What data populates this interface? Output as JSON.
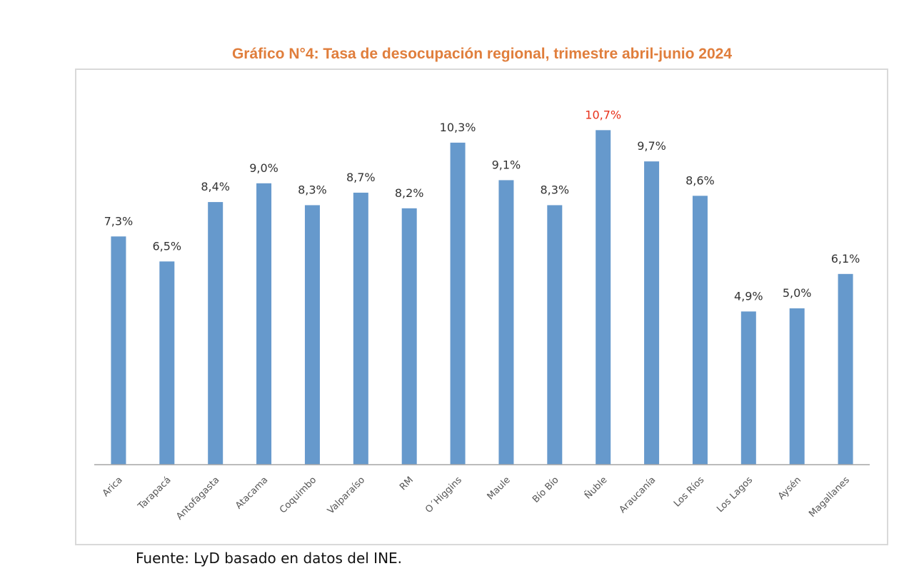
{
  "chart_data": {
    "type": "bar",
    "title": "Gráfico N°4: Tasa de desocupación regional, trimestre abril-junio 2024",
    "xlabel": "",
    "ylabel": "",
    "ylim": [
      0,
      11.5
    ],
    "grid": false,
    "legend": "none",
    "categories": [
      "Arica",
      "Tarapacá",
      "Antofagasta",
      "Atacama",
      "Coquimbo",
      "Valparaíso",
      "RM",
      "O´Higgins",
      "Maule",
      "Bío Bío",
      "Ñuble",
      "Araucanía",
      "Los Ríos",
      "Los Lagos",
      "Aysén",
      "Magallanes"
    ],
    "values": [
      7.3,
      6.5,
      8.4,
      9.0,
      8.3,
      8.7,
      8.2,
      10.3,
      9.1,
      8.3,
      10.7,
      9.7,
      8.6,
      4.9,
      5.0,
      6.1
    ],
    "data_labels": [
      "7,3%",
      "6,5%",
      "8,4%",
      "9,0%",
      "8,3%",
      "8,7%",
      "8,2%",
      "10,3%",
      "9,1%",
      "8,3%",
      "10,7%",
      "9,7%",
      "8,6%",
      "4,9%",
      "5,0%",
      "6,1%"
    ],
    "highlight_index": 10,
    "colors": {
      "bar": "#6699cc",
      "label": "#333333",
      "highlight_label": "#e8311a",
      "title": "#e07e3c",
      "axis": "#a6a6a6",
      "tick_label": "#555555"
    }
  },
  "source": "Fuente: LyD basado en datos del INE."
}
